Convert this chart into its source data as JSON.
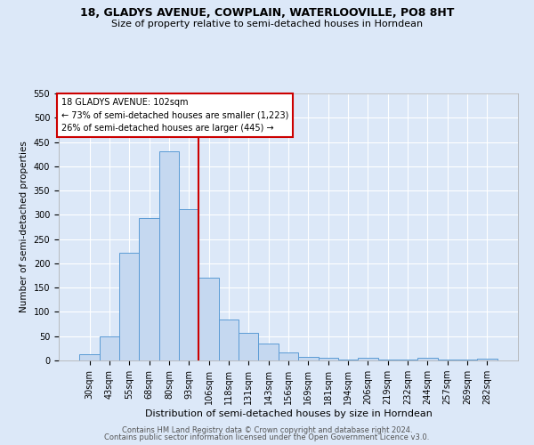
{
  "title1": "18, GLADYS AVENUE, COWPLAIN, WATERLOOVILLE, PO8 8HT",
  "title2": "Size of property relative to semi-detached houses in Horndean",
  "xlabel": "Distribution of semi-detached houses by size in Horndean",
  "ylabel": "Number of semi-detached properties",
  "footer1": "Contains HM Land Registry data © Crown copyright and database right 2024.",
  "footer2": "Contains public sector information licensed under the Open Government Licence v3.0.",
  "categories": [
    "30sqm",
    "43sqm",
    "55sqm",
    "68sqm",
    "80sqm",
    "93sqm",
    "106sqm",
    "118sqm",
    "131sqm",
    "143sqm",
    "156sqm",
    "169sqm",
    "181sqm",
    "194sqm",
    "206sqm",
    "219sqm",
    "232sqm",
    "244sqm",
    "257sqm",
    "269sqm",
    "282sqm"
  ],
  "values": [
    12,
    49,
    221,
    293,
    431,
    311,
    170,
    84,
    57,
    34,
    17,
    7,
    5,
    2,
    5,
    2,
    1,
    5,
    2,
    1,
    4
  ],
  "bar_color": "#c5d8f0",
  "bar_edge_color": "#5b9bd5",
  "annotation_line1": "18 GLADYS AVENUE: 102sqm",
  "annotation_line2": "← 73% of semi-detached houses are smaller (1,223)",
  "annotation_line3": "26% of semi-detached houses are larger (445) →",
  "vline_index": 5.5,
  "vline_color": "#cc0000",
  "annotation_box_facecolor": "#ffffff",
  "annotation_box_edgecolor": "#cc0000",
  "ylim": [
    0,
    550
  ],
  "yticks": [
    0,
    50,
    100,
    150,
    200,
    250,
    300,
    350,
    400,
    450,
    500,
    550
  ],
  "background_color": "#dce8f8",
  "grid_color": "#ffffff",
  "title1_fontsize": 9,
  "title2_fontsize": 8,
  "xlabel_fontsize": 8,
  "ylabel_fontsize": 7.5,
  "tick_fontsize": 7,
  "footer_fontsize": 6
}
